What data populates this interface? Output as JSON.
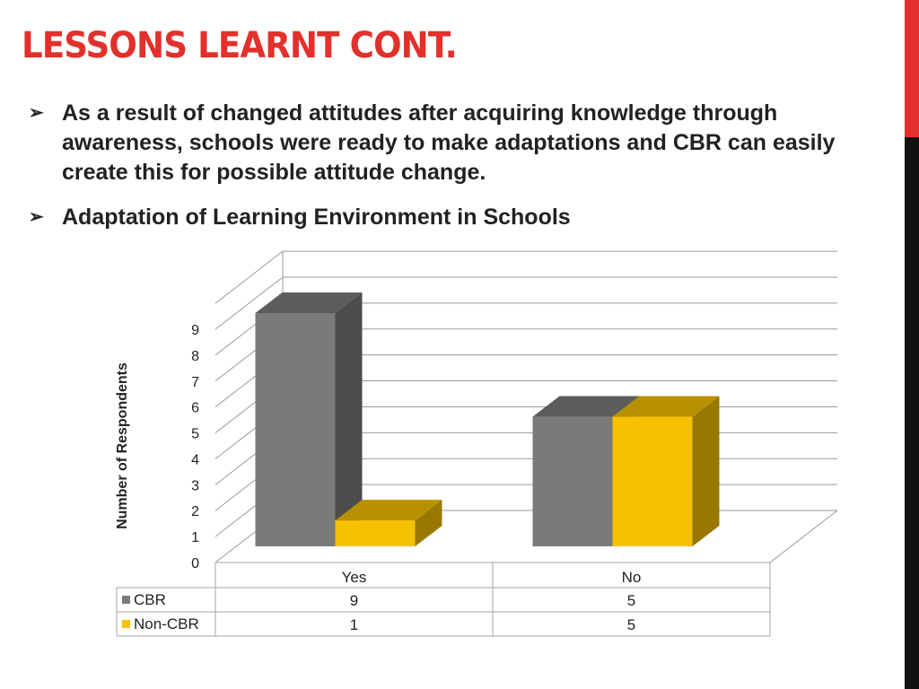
{
  "slide": {
    "title": "LESSONS LEARNT CONT.",
    "accent_color": "#e2302c",
    "bullets": [
      "As a result of changed attitudes after acquiring knowledge through awareness, schools were ready to make adaptations and CBR can easily create this for possible attitude change.",
      "Adaptation of Learning Environment in Schools"
    ],
    "bullet_icon": "arrow-bullet-icon"
  },
  "chart_data": {
    "type": "bar",
    "categories": [
      "Yes",
      "No"
    ],
    "series": [
      {
        "name": "CBR",
        "values": [
          9,
          5
        ],
        "color": "#7a7a7a"
      },
      {
        "name": "Non-CBR",
        "values": [
          1,
          5
        ],
        "color": "#f5c100"
      }
    ],
    "ylabel": "Number of Respondents",
    "ylim": [
      0,
      9
    ],
    "yticks": [
      0,
      1,
      2,
      3,
      4,
      5,
      6,
      7,
      8,
      9
    ],
    "grid": true,
    "legend": "data-table",
    "style": "3d-clustered"
  }
}
